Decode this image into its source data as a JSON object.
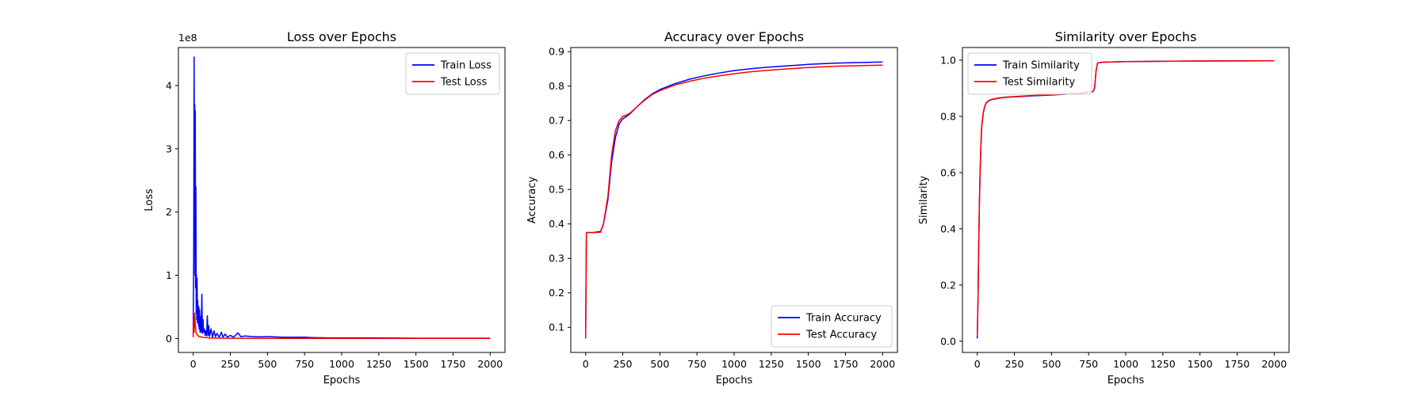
{
  "chart_data": [
    {
      "type": "line",
      "title": "Loss over Epochs",
      "xlabel": "Epochs",
      "ylabel": "Loss",
      "y_scale_label": "1e8",
      "xlim": [
        -100,
        2100
      ],
      "ylim": [
        -0.22,
        4.6
      ],
      "xticks": [
        0,
        250,
        500,
        750,
        1000,
        1250,
        1500,
        1750,
        2000
      ],
      "yticks": [
        0,
        1,
        2,
        3,
        4
      ],
      "legend": "top-right",
      "grid": false,
      "series": [
        {
          "name": "Train Loss",
          "color": "#0000ff",
          "x": [
            0,
            3,
            6,
            8,
            10,
            12,
            14,
            16,
            18,
            20,
            22,
            24,
            26,
            28,
            30,
            32,
            34,
            36,
            38,
            40,
            43,
            46,
            50,
            54,
            58,
            62,
            66,
            70,
            75,
            80,
            85,
            90,
            95,
            100,
            105,
            110,
            120,
            130,
            140,
            150,
            160,
            175,
            190,
            200,
            215,
            230,
            250,
            270,
            290,
            300,
            320,
            350,
            400,
            450,
            500,
            600,
            700,
            750,
            800,
            900,
            1000,
            1200,
            1500,
            1750,
            2000
          ],
          "y": [
            0.05,
            1.2,
            4.45,
            2.0,
            3.7,
            1.0,
            3.6,
            0.8,
            2.4,
            0.4,
            1.0,
            0.3,
            0.95,
            0.25,
            0.6,
            0.5,
            0.35,
            0.2,
            0.5,
            0.15,
            0.45,
            0.1,
            0.35,
            0.1,
            0.7,
            0.08,
            0.3,
            0.1,
            0.15,
            0.05,
            0.12,
            0.04,
            0.36,
            0.05,
            0.2,
            0.03,
            0.15,
            0.02,
            0.12,
            0.03,
            0.08,
            0.02,
            0.1,
            0.02,
            0.07,
            0.02,
            0.05,
            0.02,
            0.06,
            0.09,
            0.03,
            0.04,
            0.03,
            0.025,
            0.03,
            0.02,
            0.02,
            0.02,
            0.015,
            0.01,
            0.01,
            0.01,
            0.005,
            0.005,
            0.005
          ]
        },
        {
          "name": "Test Loss",
          "color": "#ff0000",
          "x": [
            0,
            3,
            6,
            10,
            15,
            20,
            30,
            40,
            60,
            100,
            200,
            500,
            1000,
            2000
          ],
          "y": [
            0.02,
            0.3,
            0.1,
            0.4,
            0.2,
            0.08,
            0.05,
            0.03,
            0.02,
            0.01,
            0.005,
            0.003,
            0.002,
            0.002
          ]
        }
      ]
    },
    {
      "type": "line",
      "title": "Accuracy over Epochs",
      "xlabel": "Epochs",
      "ylabel": "Accuracy",
      "xlim": [
        -100,
        2100
      ],
      "ylim": [
        0.027,
        0.912
      ],
      "xticks": [
        0,
        250,
        500,
        750,
        1000,
        1250,
        1500,
        1750,
        2000
      ],
      "yticks": [
        0.1,
        0.2,
        0.3,
        0.4,
        0.5,
        0.6,
        0.7,
        0.8,
        0.9
      ],
      "legend": "bottom-right",
      "grid": false,
      "series": [
        {
          "name": "Train Accuracy",
          "color": "#0000ff",
          "x": [
            0,
            5,
            50,
            100,
            120,
            150,
            175,
            200,
            225,
            250,
            275,
            300,
            350,
            400,
            450,
            500,
            600,
            700,
            800,
            900,
            1000,
            1100,
            1200,
            1300,
            1400,
            1500,
            1600,
            1700,
            1800,
            1900,
            2000
          ],
          "y": [
            0.068,
            0.375,
            0.375,
            0.378,
            0.4,
            0.47,
            0.58,
            0.65,
            0.69,
            0.705,
            0.712,
            0.72,
            0.742,
            0.762,
            0.778,
            0.79,
            0.807,
            0.82,
            0.83,
            0.838,
            0.845,
            0.85,
            0.854,
            0.857,
            0.86,
            0.863,
            0.865,
            0.867,
            0.868,
            0.869,
            0.87
          ]
        },
        {
          "name": "Test Accuracy",
          "color": "#ff0000",
          "x": [
            0,
            5,
            50,
            100,
            120,
            150,
            175,
            200,
            225,
            250,
            275,
            300,
            350,
            400,
            450,
            500,
            600,
            700,
            800,
            900,
            1000,
            1100,
            1200,
            1300,
            1400,
            1500,
            1600,
            1700,
            1800,
            1900,
            2000
          ],
          "y": [
            0.068,
            0.375,
            0.375,
            0.376,
            0.4,
            0.48,
            0.6,
            0.67,
            0.7,
            0.712,
            0.716,
            0.722,
            0.742,
            0.76,
            0.776,
            0.787,
            0.803,
            0.814,
            0.823,
            0.83,
            0.836,
            0.841,
            0.845,
            0.848,
            0.851,
            0.854,
            0.856,
            0.858,
            0.859,
            0.86,
            0.861
          ]
        }
      ]
    },
    {
      "type": "line",
      "title": "Similarity over Epochs",
      "xlabel": "Epochs",
      "ylabel": "Similarity",
      "xlim": [
        -100,
        2100
      ],
      "ylim": [
        -0.04,
        1.045
      ],
      "xticks": [
        0,
        250,
        500,
        750,
        1000,
        1250,
        1500,
        1750,
        2000
      ],
      "yticks": [
        0.0,
        0.2,
        0.4,
        0.6,
        0.7999999,
        1.0
      ],
      "ytick_labels": [
        "0.0",
        "0.2",
        "0.4",
        "0.6",
        "0.8",
        "1.0"
      ],
      "legend": "top-left",
      "grid": false,
      "series": [
        {
          "name": "Train Similarity",
          "color": "#0000ff",
          "x": [
            0,
            5,
            10,
            15,
            20,
            25,
            30,
            40,
            50,
            60,
            80,
            100,
            150,
            200,
            300,
            400,
            500,
            600,
            700,
            780,
            790,
            800,
            810,
            850,
            1000,
            1500,
            2000
          ],
          "y": [
            0.01,
            0.15,
            0.35,
            0.5,
            0.62,
            0.7,
            0.76,
            0.81,
            0.835,
            0.848,
            0.856,
            0.86,
            0.865,
            0.868,
            0.871,
            0.874,
            0.876,
            0.879,
            0.882,
            0.888,
            0.9,
            0.96,
            0.99,
            0.993,
            0.995,
            0.997,
            0.998
          ]
        },
        {
          "name": "Test Similarity",
          "color": "#ff0000",
          "x": [
            0,
            5,
            10,
            15,
            20,
            25,
            30,
            40,
            50,
            60,
            80,
            100,
            150,
            200,
            300,
            400,
            500,
            600,
            700,
            780,
            790,
            800,
            810,
            850,
            1000,
            1500,
            2000
          ],
          "y": [
            0.02,
            0.16,
            0.36,
            0.51,
            0.63,
            0.71,
            0.765,
            0.812,
            0.836,
            0.849,
            0.857,
            0.861,
            0.866,
            0.869,
            0.872,
            0.875,
            0.877,
            0.88,
            0.883,
            0.889,
            0.901,
            0.96,
            0.99,
            0.993,
            0.995,
            0.997,
            0.998
          ]
        }
      ]
    }
  ]
}
